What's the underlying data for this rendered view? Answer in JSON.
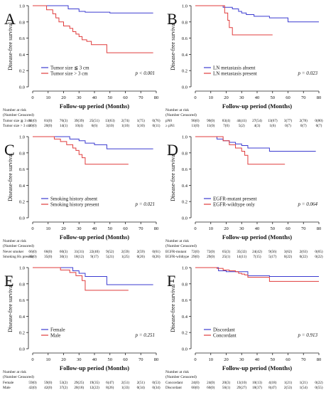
{
  "figure": {
    "colors": {
      "series1": "#3b3bd0",
      "series2": "#e03c3c",
      "axis": "#222222"
    }
  },
  "chart_data": [
    {
      "type": "line",
      "panel_label": "A",
      "title": "",
      "xlabel": "Follow-up period (Months)",
      "ylabel": "Disease-free survival",
      "xlim": [
        0,
        80
      ],
      "ylim": [
        0,
        1.0
      ],
      "x_ticks": [
        "0",
        "10",
        "20",
        "30",
        "40",
        "50",
        "60",
        "70",
        "80"
      ],
      "y_ticks": [
        "0.0",
        "0.2",
        "0.4",
        "0.6",
        "0.8",
        "1.0"
      ],
      "legend_position": "bottom-left",
      "series": [
        {
          "name": "Tumor size ≦ 3 cm",
          "color": "#3b3bd0",
          "x": [
            0,
            13,
            23,
            28,
            30,
            34,
            46,
            50,
            58,
            78
          ],
          "y": [
            1.0,
            1.0,
            0.96,
            0.96,
            0.93,
            0.92,
            0.92,
            0.91,
            0.91,
            0.91
          ]
        },
        {
          "name": "Tumor size > 3 cm",
          "color": "#e03c3c",
          "x": [
            0,
            5,
            9,
            13,
            15,
            17,
            20,
            24,
            26,
            28,
            30,
            32,
            35,
            38,
            48,
            78
          ],
          "y": [
            1.0,
            1.0,
            0.95,
            0.9,
            0.85,
            0.8,
            0.75,
            0.72,
            0.68,
            0.65,
            0.62,
            0.58,
            0.56,
            0.52,
            0.42,
            0.42
          ]
        }
      ],
      "p_value": "p < 0.001",
      "risk_table": {
        "header": "Number at risk",
        "subheader": "(Number Censored)",
        "rows": [
          {
            "label": "Tumor size ≦ 3 cm",
            "values": [
              "81(0)",
              "81(0)",
              "76(3)",
              "39(39)",
              "25(51)",
              "13(63)",
              "2(74)",
              "1(75)",
              "0(76)"
            ]
          },
          {
            "label": "Tumor size > 3 cm",
            "values": [
              "20(0)",
              "20(0)",
              "14(1)",
              "10(4)",
              "6(6)",
              "3(10)",
              "1(10)",
              "1(10)",
              "0(11)"
            ]
          }
        ]
      }
    },
    {
      "type": "line",
      "panel_label": "B",
      "title": "",
      "xlabel": "Follow-up period (Months)",
      "ylabel": "Disease-free survival",
      "xlim": [
        0,
        80
      ],
      "ylim": [
        0,
        1.0
      ],
      "x_ticks": [
        "0",
        "10",
        "20",
        "30",
        "40",
        "50",
        "60",
        "70",
        "80"
      ],
      "y_ticks": [
        "0.0",
        "0.2",
        "0.4",
        "0.6",
        "0.8",
        "1.0"
      ],
      "legend_position": "bottom-left",
      "series": [
        {
          "name": "LN metastasis absent",
          "color": "#3b3bd0",
          "x": [
            0,
            14,
            18,
            24,
            28,
            30,
            33,
            38,
            48,
            56,
            60,
            80
          ],
          "y": [
            1.0,
            1.0,
            0.98,
            0.96,
            0.93,
            0.91,
            0.89,
            0.87,
            0.85,
            0.85,
            0.8,
            0.8
          ]
        },
        {
          "name": "LN metastasis present",
          "color": "#e03c3c",
          "x": [
            0,
            18,
            19,
            20,
            21,
            22,
            24,
            50
          ],
          "y": [
            1.0,
            1.0,
            0.91,
            0.91,
            0.82,
            0.73,
            0.64,
            0.64
          ]
        }
      ],
      "p_value": "p = 0.023",
      "risk_table": {
        "header": "Number at risk",
        "subheader": "(Number Censored)",
        "rows": [
          {
            "label": "pN0",
            "values": [
              "90(0)",
              "90(0)",
              "83(4)",
              "44(41)",
              "27(54)",
              "13(67)",
              "3(77)",
              "2(78)",
              "0(80)"
            ]
          },
          {
            "label": "≥ pN1",
            "values": [
              "11(0)",
              "11(0)",
              "7(0)",
              "5(2)",
              "4(3)",
              "1(6)",
              "0(7)",
              "0(7)",
              "0(7)"
            ]
          }
        ]
      }
    },
    {
      "type": "line",
      "panel_label": "C",
      "title": "",
      "xlabel": "Follow-up period (Months)",
      "ylabel": "Disease-free survival",
      "xlim": [
        0,
        80
      ],
      "ylim": [
        0,
        1.0
      ],
      "x_ticks": [
        "0",
        "10",
        "20",
        "30",
        "40",
        "50",
        "60",
        "70",
        "80"
      ],
      "y_ticks": [
        "0.0",
        "0.2",
        "0.4",
        "0.6",
        "0.8",
        "1.0"
      ],
      "legend_position": "bottom-left",
      "series": [
        {
          "name": "Smoking history absent",
          "color": "#3b3bd0",
          "x": [
            0,
            20,
            24,
            30,
            34,
            40,
            48,
            78
          ],
          "y": [
            1.0,
            1.0,
            0.97,
            0.95,
            0.92,
            0.9,
            0.85,
            0.85
          ]
        },
        {
          "name": "Smoking history present",
          "color": "#e03c3c",
          "x": [
            0,
            8,
            14,
            18,
            22,
            26,
            28,
            30,
            32,
            34,
            62
          ],
          "y": [
            1.0,
            1.0,
            0.97,
            0.94,
            0.9,
            0.86,
            0.83,
            0.78,
            0.74,
            0.66,
            0.66
          ]
        }
      ],
      "p_value": "p = 0.021",
      "risk_table": {
        "header": "Number at risk",
        "subheader": "(Number Censored)",
        "rows": [
          {
            "label": "Never smoker",
            "values": [
              "66(0)",
              "66(0)",
              "60(3)",
              "31(31)",
              "22(40)",
              "9(52)",
              "2(59)",
              "2(59)",
              "0(61)"
            ]
          },
          {
            "label": "Smoking Hx present",
            "values": [
              "35(0)",
              "35(0)",
              "30(1)",
              "18(12)",
              "9(17)",
              "5(21)",
              "1(25)",
              "0(26)",
              "0(26)"
            ]
          }
        ]
      }
    },
    {
      "type": "line",
      "panel_label": "D",
      "title": "",
      "xlabel": "Follow-up period (Months)",
      "ylabel": "Disease-free survival",
      "xlim": [
        0,
        80
      ],
      "ylim": [
        0,
        1.0
      ],
      "x_ticks": [
        "0",
        "10",
        "20",
        "30",
        "40",
        "50",
        "60",
        "70",
        "80"
      ],
      "y_ticks": [
        "0.0",
        "0.2",
        "0.4",
        "0.6",
        "0.8",
        "1.0"
      ],
      "legend_position": "bottom-left",
      "series": [
        {
          "name": "EGFR-mutant present",
          "color": "#3b3bd0",
          "x": [
            0,
            10,
            14,
            18,
            22,
            26,
            30,
            34,
            48,
            78
          ],
          "y": [
            1.0,
            1.0,
            0.97,
            0.95,
            0.93,
            0.91,
            0.89,
            0.86,
            0.82,
            0.82
          ]
        },
        {
          "name": "EGFR-wildtype only",
          "color": "#e03c3c",
          "x": [
            0,
            14,
            18,
            22,
            26,
            30,
            32,
            34,
            58
          ],
          "y": [
            1.0,
            1.0,
            0.95,
            0.9,
            0.86,
            0.82,
            0.77,
            0.66,
            0.66
          ]
        }
      ],
      "p_value": "p = 0.064",
      "risk_table": {
        "header": "Number at risk",
        "subheader": "(Number Censored)",
        "rows": [
          {
            "label": "EGFR-mutant",
            "values": [
              "72(0)",
              "72(0)",
              "65(3)",
              "35(32)",
              "24(42)",
              "9(56)",
              "3(62)",
              "2(63)",
              "0(65)"
            ]
          },
          {
            "label": "EGFR-wildtype",
            "values": [
              "29(0)",
              "29(0)",
              "25(1)",
              "14(11)",
              "7(15)",
              "5(17)",
              "0(22)",
              "0(22)",
              "0(22)"
            ]
          }
        ]
      }
    },
    {
      "type": "line",
      "panel_label": "E",
      "title": "",
      "xlabel": "Follow-up period (Months)",
      "ylabel": "Disease-free survival",
      "xlim": [
        0,
        80
      ],
      "ylim": [
        0,
        1.0
      ],
      "x_ticks": [
        "0",
        "10",
        "20",
        "30",
        "40",
        "50",
        "60",
        "70",
        "80"
      ],
      "y_ticks": [
        "0.0",
        "0.2",
        "0.4",
        "0.6",
        "0.8",
        "1.0"
      ],
      "legend_position": "bottom-left",
      "series": [
        {
          "name": "Female",
          "color": "#3b3bd0",
          "x": [
            0,
            20,
            26,
            30,
            34,
            48,
            78
          ],
          "y": [
            1.0,
            1.0,
            0.96,
            0.93,
            0.89,
            0.79,
            0.79
          ]
        },
        {
          "name": "Male",
          "color": "#e03c3c",
          "x": [
            0,
            12,
            18,
            24,
            28,
            32,
            34,
            62
          ],
          "y": [
            1.0,
            1.0,
            0.97,
            0.94,
            0.9,
            0.84,
            0.72,
            0.72
          ]
        }
      ],
      "p_value": "p = 0.251",
      "risk_table": {
        "header": "Number at risk",
        "subheader": "(Number Censored)",
        "rows": [
          {
            "label": "Female",
            "values": [
              "59(0)",
              "59(0)",
              "53(2)",
              "29(25)",
              "19(35)",
              "6(47)",
              "2(51)",
              "2(51)",
              "0(53)"
            ]
          },
          {
            "label": "Male",
            "values": [
              "42(0)",
              "42(0)",
              "37(2)",
              "20(18)",
              "12(22)",
              "8(26)",
              "1(33)",
              "0(34)",
              "0(34)"
            ]
          }
        ]
      }
    },
    {
      "type": "line",
      "panel_label": "F",
      "title": "",
      "xlabel": "Follow-up period (Months)",
      "ylabel": "Disease-free survival",
      "xlim": [
        0,
        80
      ],
      "ylim": [
        0,
        1.0
      ],
      "x_ticks": [
        "0",
        "10",
        "20",
        "30",
        "40",
        "50",
        "60",
        "70",
        "80"
      ],
      "y_ticks": [
        "0.0",
        "0.2",
        "0.4",
        "0.6",
        "0.8",
        "1.0"
      ],
      "legend_position": "bottom-left",
      "series": [
        {
          "name": "Discordant",
          "color": "#3b3bd0",
          "x": [
            0,
            10,
            15,
            20,
            32,
            34,
            46,
            48,
            80
          ],
          "y": [
            1.0,
            1.0,
            0.96,
            0.95,
            0.95,
            0.9,
            0.9,
            0.89,
            0.89
          ]
        },
        {
          "name": "Concordant",
          "color": "#e03c3c",
          "x": [
            0,
            10,
            14,
            18,
            22,
            26,
            28,
            30,
            32,
            34,
            48,
            80
          ],
          "y": [
            1.0,
            1.0,
            0.99,
            0.97,
            0.96,
            0.95,
            0.93,
            0.92,
            0.91,
            0.88,
            0.83,
            0.83
          ]
        }
      ],
      "p_value": "p = 0.913",
      "risk_table": {
        "header": "Number at risk",
        "subheader": "(Number Censored)",
        "rows": [
          {
            "label": "Concordant",
            "values": [
              "24(0)",
              "24(0)",
              "20(3)",
              "13(10)",
              "10(13)",
              "4(18)",
              "1(21)",
              "1(21)",
              "0(22)"
            ]
          },
          {
            "label": "Discordant",
            "values": [
              "60(0)",
              "60(0)",
              "56(1)",
              "29(27)",
              "18(37)",
              "8(47)",
              "2(53)",
              "1(54)",
              "0(55)"
            ]
          }
        ]
      }
    }
  ]
}
